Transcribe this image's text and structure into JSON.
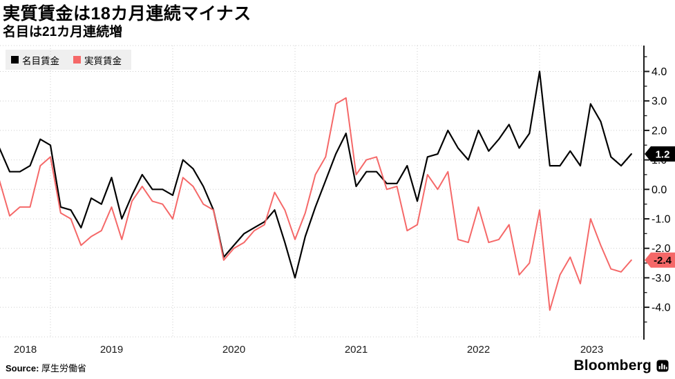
{
  "header": {
    "title": "実質賃金は18カ月連続マイナス",
    "subtitle": "名目は21カ月連続増"
  },
  "legend": [
    {
      "label": "名目賃金",
      "color": "#000000"
    },
    {
      "label": "実質賃金",
      "color": "#f56868"
    }
  ],
  "footer": {
    "source_label": "Source:",
    "source_value": "厚生労働省",
    "brand": "Bloomberg",
    "brand_icon": "bar-chart-icon"
  },
  "colors": {
    "nominal": "#000000",
    "real": "#f56868",
    "grid": "#cccccc",
    "axis": "#1a1a1a",
    "legend_bg": "#efefef",
    "nominal_tag_bg": "#000000",
    "nominal_tag_text": "#ffffff",
    "real_tag_bg": "#f56868",
    "real_tag_text": "#000000"
  },
  "chart_data": {
    "type": "line",
    "title": "実質賃金は18カ月連続マイナス",
    "subtitle": "名目は21カ月連続増",
    "unit": "percent change year-over-year",
    "frequency": "monthly",
    "x_start": "2018-07",
    "x_end": "2023-09",
    "x_axis_year_labels": [
      "2018",
      "2019",
      "2020",
      "2021",
      "2022",
      "2023"
    ],
    "y_axis_ticks": [
      "4.0",
      "3.0",
      "2.0",
      "1.0",
      "0.0",
      "-1.0",
      "-2.0",
      "-3.0",
      "-4.0"
    ],
    "ylim": [
      -5.0,
      4.9
    ],
    "grid": true,
    "legend_position": "top-left",
    "axis_side": "right",
    "series": [
      {
        "name": "名目賃金",
        "color": "#000000",
        "end_label": "1.2",
        "values": [
          1.4,
          0.6,
          0.6,
          0.8,
          1.7,
          1.5,
          -0.6,
          -0.7,
          -1.3,
          -0.3,
          -0.5,
          0.4,
          -1.0,
          -0.2,
          0.5,
          0.0,
          0.0,
          -0.2,
          1.0,
          0.7,
          0.1,
          -0.7,
          -2.3,
          -1.9,
          -1.5,
          -1.3,
          -1.1,
          -0.7,
          -1.8,
          -3.0,
          -1.6,
          -0.6,
          0.3,
          1.2,
          1.9,
          0.1,
          0.6,
          0.6,
          0.2,
          0.2,
          0.8,
          -0.4,
          1.1,
          1.2,
          2.0,
          1.4,
          1.0,
          2.0,
          1.3,
          1.7,
          2.2,
          1.4,
          1.9,
          4.0,
          0.8,
          0.8,
          1.3,
          0.8,
          2.9,
          2.3,
          1.1,
          0.8,
          1.2
        ]
      },
      {
        "name": "実質賃金",
        "color": "#f56868",
        "end_label": "-2.4",
        "values": [
          0.3,
          -0.9,
          -0.6,
          -0.6,
          0.8,
          1.1,
          -0.8,
          -1.0,
          -1.9,
          -1.6,
          -1.4,
          -0.6,
          -1.7,
          -0.4,
          0.1,
          -0.4,
          -0.5,
          -1.0,
          0.4,
          0.1,
          -0.5,
          -0.7,
          -2.4,
          -2.0,
          -1.8,
          -1.4,
          -1.2,
          -0.1,
          -0.7,
          -1.7,
          -0.8,
          0.5,
          1.1,
          2.9,
          3.1,
          0.5,
          1.0,
          1.1,
          0.0,
          0.1,
          -1.4,
          -1.2,
          0.5,
          0.0,
          0.6,
          -1.7,
          -1.8,
          -0.6,
          -1.8,
          -1.7,
          -1.2,
          -2.9,
          -2.5,
          -0.7,
          -4.1,
          -2.9,
          -2.3,
          -3.2,
          -1.0,
          -1.9,
          -2.7,
          -2.8,
          -2.4
        ]
      }
    ]
  }
}
